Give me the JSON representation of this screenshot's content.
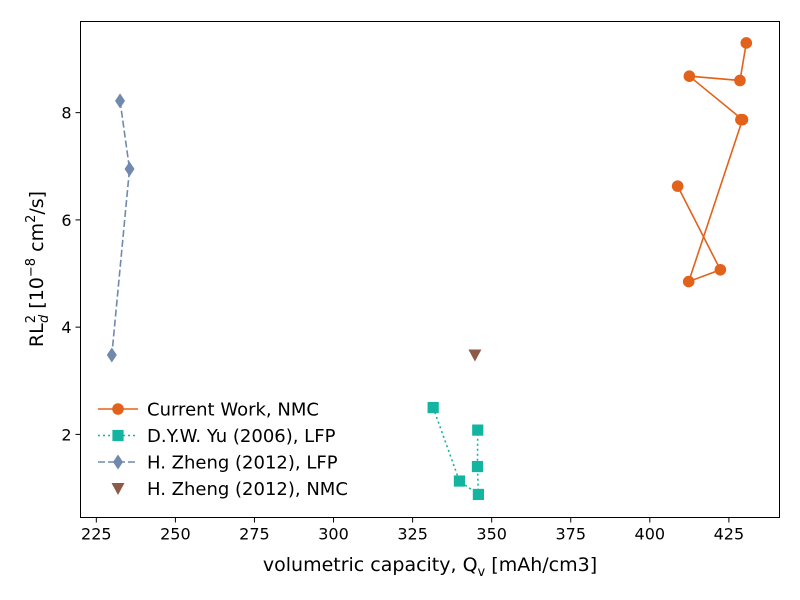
{
  "chart_data": {
    "type": "scatter",
    "xlabel": "volumetric capacity, Q",
    "xlabel_sub": "v",
    "xlabel_unit": " [mAh/cm3]",
    "ylabel_main": "RL",
    "ylabel_sup": "2",
    "ylabel_sub": "d",
    "ylabel_unit_a": " [10",
    "ylabel_unit_exp": "−8",
    "ylabel_unit_b": " cm",
    "ylabel_unit_exp2": "2",
    "ylabel_unit_c": "/s]",
    "xlim": [
      220,
      441
    ],
    "ylim": [
      0.45,
      9.7
    ],
    "xticks": [
      225,
      250,
      275,
      300,
      325,
      350,
      375,
      400,
      425
    ],
    "yticks": [
      2,
      4,
      6,
      8
    ],
    "grid": false,
    "legend_position": "lower-left",
    "series": [
      {
        "name": "Current Work, NMC",
        "color": "#e2621b",
        "marker": "circle",
        "line": "solid",
        "x": [
          430.5,
          428.5,
          412.5,
          428.8,
          408.8,
          422.3,
          412.3,
          429.3
        ],
        "y": [
          9.3,
          8.6,
          8.68,
          7.87,
          6.63,
          5.07,
          4.85,
          7.87
        ],
        "points_order": [
          [
            430.5,
            9.3
          ],
          [
            428.5,
            8.6
          ],
          [
            412.5,
            8.68
          ],
          [
            429.3,
            7.87
          ],
          [
            412.3,
            4.85
          ],
          [
            422.3,
            5.07
          ],
          [
            408.8,
            6.63
          ]
        ]
      },
      {
        "name": "D.Y.W. Yu (2006), LFP",
        "color": "#13b5a1",
        "marker": "square",
        "line": "dotted",
        "x": [
          331.5,
          339.8,
          345.8,
          345.5,
          345.6
        ],
        "y": [
          2.5,
          1.13,
          0.88,
          1.4,
          2.08
        ]
      },
      {
        "name": "H. Zheng (2012), LFP",
        "color": "#7089ac",
        "marker": "diamond",
        "line": "dashed",
        "x": [
          232.5,
          235.5,
          229.9
        ],
        "y": [
          8.22,
          6.95,
          3.48
        ]
      },
      {
        "name": "H. Zheng (2012), NMC",
        "color": "#8c5a46",
        "marker": "triangle-down",
        "line": "none",
        "x": [
          344.7
        ],
        "y": [
          3.48
        ]
      }
    ]
  }
}
